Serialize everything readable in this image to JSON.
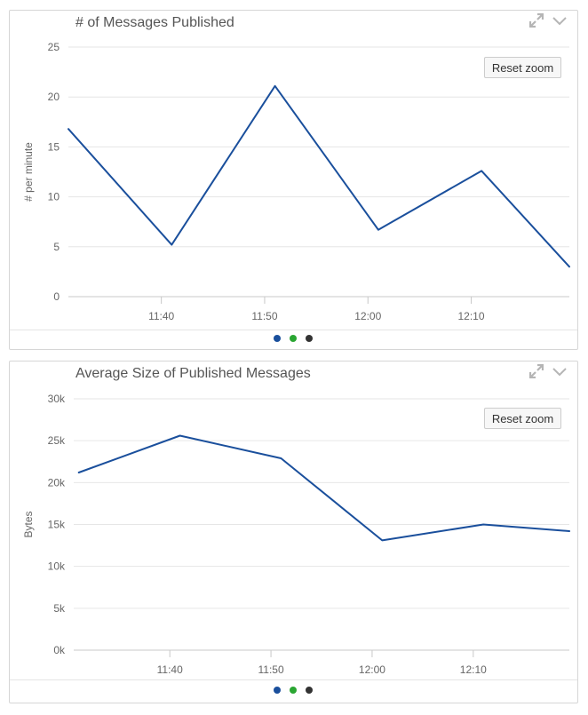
{
  "panels": [
    {
      "title": "# of Messages Published",
      "reset_label": "Reset zoom",
      "dot_colors": [
        "#1a4f9c",
        "#2aa632",
        "#333333"
      ]
    },
    {
      "title": "Average Size of Published Messages",
      "reset_label": "Reset zoom",
      "dot_colors": [
        "#1a4f9c",
        "#2aa632",
        "#333333"
      ]
    }
  ],
  "chart_data": [
    {
      "type": "line",
      "title": "# of Messages Published",
      "ylabel": "# per minute",
      "xlabel": "",
      "x_ticks": [
        "11:40",
        "11:50",
        "12:00",
        "12:10"
      ],
      "y_ticks": [
        "0",
        "5",
        "10",
        "15",
        "20",
        "25"
      ],
      "ylim": [
        0,
        25
      ],
      "xlim": [
        "11:31:00",
        "12:19:30"
      ],
      "grid": true,
      "line_color": "#1a4f9c",
      "series": [
        {
          "x": [
            "11:31:00",
            "11:41:00",
            "11:51:00",
            "12:01:00",
            "12:11:00",
            "12:19:30"
          ],
          "values": [
            16.8,
            5.2,
            21.1,
            6.7,
            12.6,
            3.0
          ]
        }
      ]
    },
    {
      "type": "line",
      "title": "Average Size of Published Messages",
      "ylabel": "Bytes",
      "xlabel": "",
      "x_ticks": [
        "11:40",
        "11:50",
        "12:00",
        "12:10"
      ],
      "y_ticks": [
        "0k",
        "5k",
        "10k",
        "15k",
        "20k",
        "25k",
        "30k"
      ],
      "ylim": [
        0,
        30000
      ],
      "xlim": [
        "11:30:30",
        "12:19:30"
      ],
      "grid": true,
      "line_color": "#1a4f9c",
      "series": [
        {
          "x": [
            "11:31:00",
            "11:41:00",
            "11:51:00",
            "12:01:00",
            "12:11:00",
            "12:19:30"
          ],
          "values": [
            21200,
            25600,
            22900,
            13100,
            15000,
            14200
          ]
        }
      ]
    }
  ]
}
